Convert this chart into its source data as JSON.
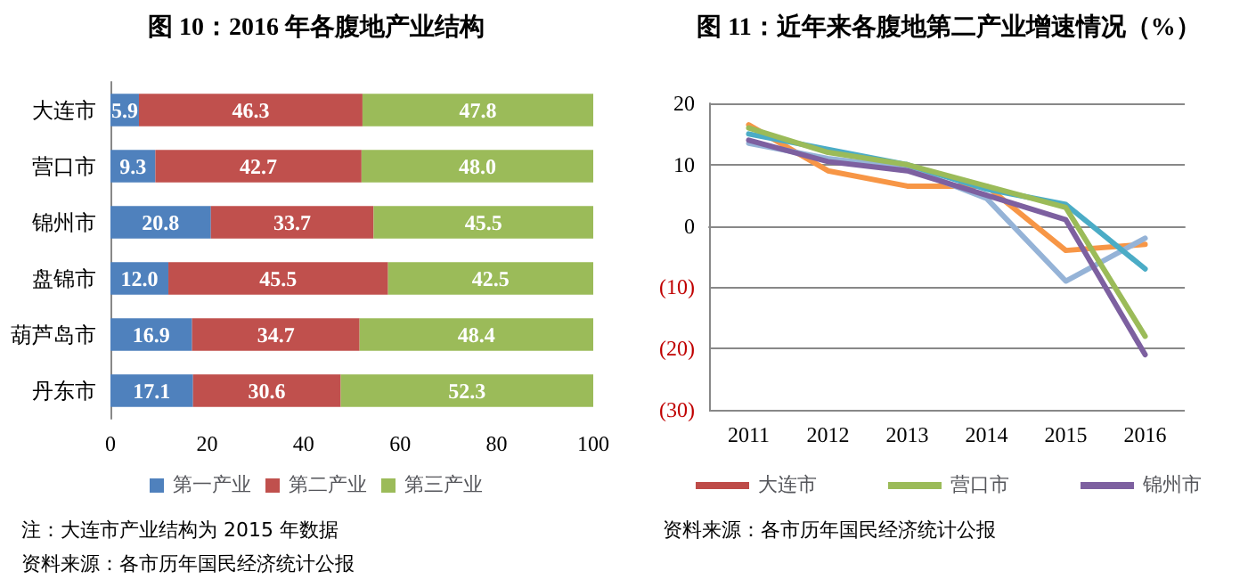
{
  "chart_data": [
    {
      "type": "bar",
      "orientation": "horizontal",
      "stacked": true,
      "title": "图 10：2016 年各腹地产业结构",
      "categories": [
        "大连市",
        "营口市",
        "锦州市",
        "盘锦市",
        "葫芦岛市",
        "丹东市"
      ],
      "series": [
        {
          "name": "第一产业",
          "color": "#4f81bd",
          "values": [
            5.9,
            9.3,
            20.8,
            12.0,
            16.9,
            17.1
          ],
          "value_labels": [
            "5.9",
            "9.3",
            "20.8",
            "12.0",
            "16.9",
            "17.1"
          ]
        },
        {
          "name": "第二产业",
          "color": "#c0504d",
          "values": [
            46.3,
            42.7,
            33.7,
            45.5,
            34.7,
            30.6
          ],
          "value_labels": [
            "46.3",
            "42.7",
            "33.7",
            "45.5",
            "34.7",
            "30.6"
          ]
        },
        {
          "name": "第三产业",
          "color": "#9bbb59",
          "values": [
            47.8,
            48.0,
            45.5,
            42.5,
            48.4,
            52.3
          ],
          "value_labels": [
            "47.8",
            "48.0",
            "45.5",
            "42.5",
            "48.4",
            "52.3"
          ]
        }
      ],
      "xlim": [
        0,
        100
      ],
      "xticks": [
        0,
        20,
        40,
        60,
        80,
        100
      ],
      "grid": false,
      "legend": "bottom",
      "annotations": [
        "注：大连市产业结构为 2015 年数据",
        "资料来源：各市历年国民经济统计公报"
      ]
    },
    {
      "type": "line",
      "title": "图 11：近年来各腹地第二产业增速情况（%）",
      "categories": [
        "2011",
        "2012",
        "2013",
        "2014",
        "2015",
        "2016"
      ],
      "series": [
        {
          "name": "大连市",
          "color": "#be4b48",
          "values": [
            null,
            null,
            null,
            null,
            null,
            null
          ]
        },
        {
          "color": "#f79646",
          "values": [
            16.5,
            9,
            6.5,
            6.5,
            -4,
            -3
          ]
        },
        {
          "color": "#95b3d7",
          "values": [
            13.5,
            11,
            9.5,
            4.5,
            -9,
            -2
          ]
        },
        {
          "color": "#4bacc6",
          "values": [
            15,
            12.5,
            10,
            6,
            3.5,
            -7
          ]
        },
        {
          "name": "营口市",
          "color": "#9bbb59",
          "values": [
            16,
            12,
            10,
            6.5,
            3,
            -18
          ]
        },
        {
          "name": "锦州市",
          "color": "#7d60a0",
          "values": [
            14,
            10.5,
            9,
            5,
            1,
            -21
          ]
        }
      ],
      "ylim": [
        -30,
        20
      ],
      "yticks": [
        {
          "value": -30,
          "label": "(30)"
        },
        {
          "value": -20,
          "label": "(20)"
        },
        {
          "value": -10,
          "label": "(10)"
        },
        0,
        10,
        20
      ],
      "grid": "y",
      "legend": "bottom",
      "marker": "none",
      "line_style": "solid",
      "annotations": [
        "资料来源：各市历年国民经济统计公报"
      ]
    }
  ]
}
